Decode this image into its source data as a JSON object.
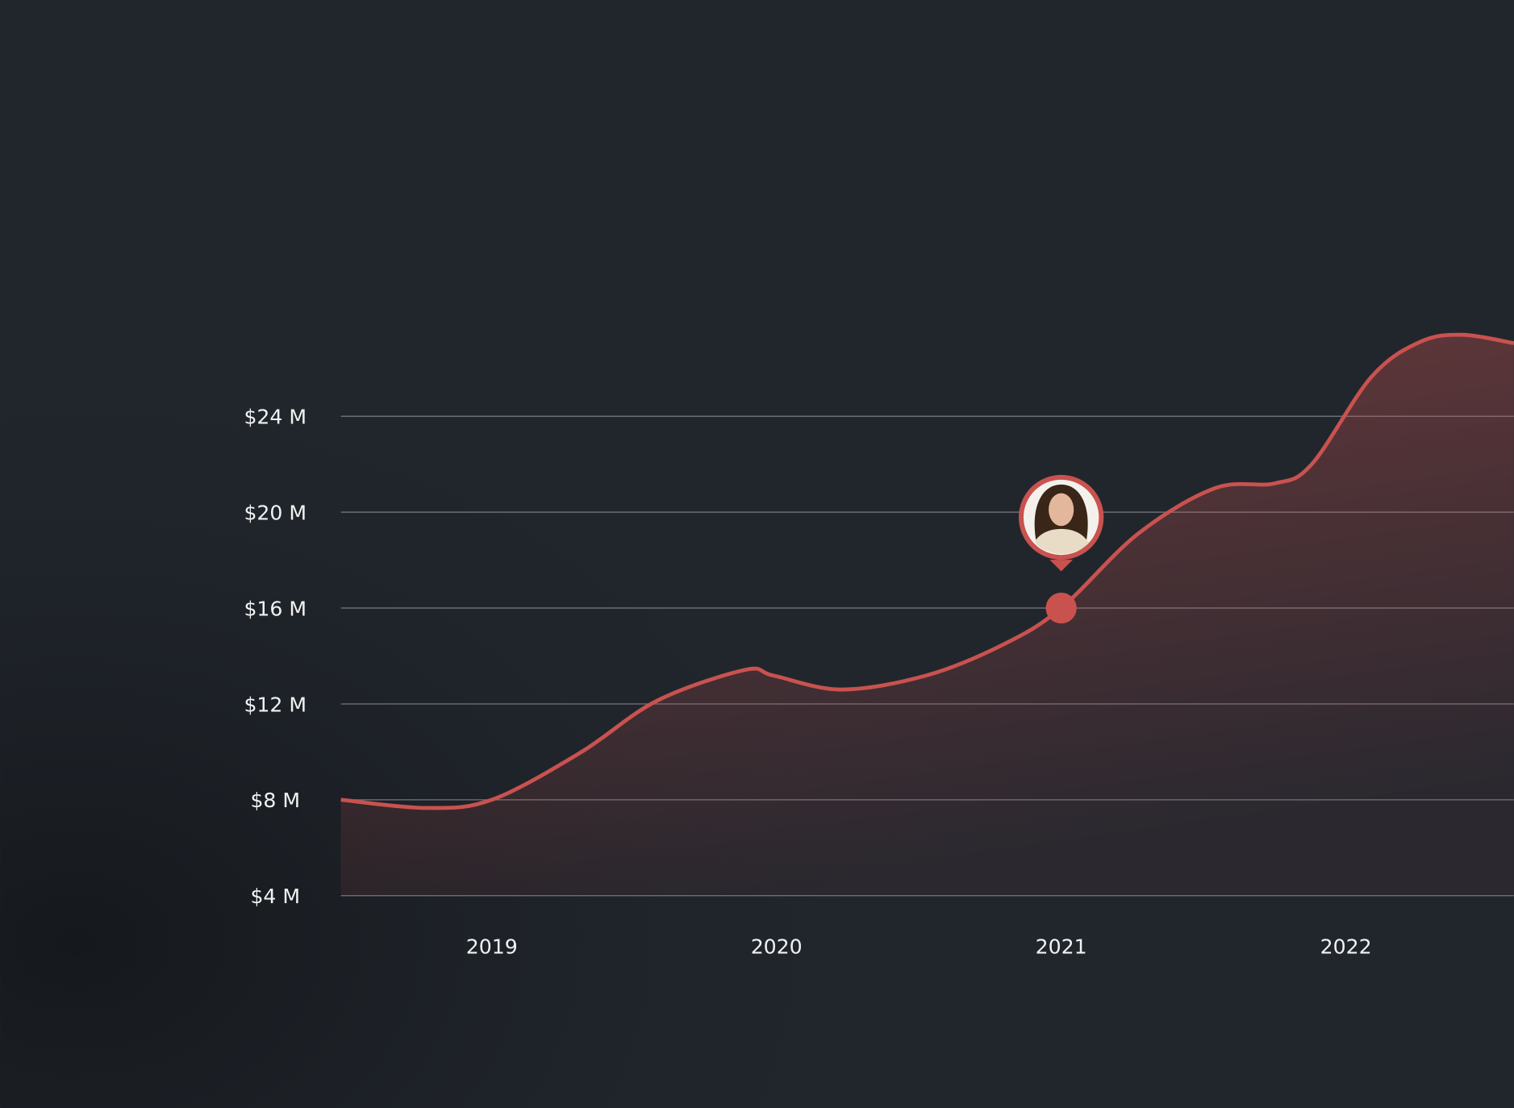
{
  "chart_data": {
    "type": "area",
    "x": [
      2018.47,
      2018.77,
      2019.0,
      2019.31,
      2019.58,
      2019.89,
      2019.99,
      2020.23,
      2020.53,
      2020.8,
      2021.0,
      2021.27,
      2021.54,
      2021.75,
      2021.88,
      2022.09,
      2022.26,
      2022.41,
      2022.59
    ],
    "series": [
      {
        "color": "#c9524f",
        "values": [
          8.0,
          7.66,
          8.0,
          9.96,
          12.13,
          13.42,
          13.18,
          12.6,
          13.2,
          14.5,
          16.0,
          19.1,
          21.0,
          21.2,
          22.0,
          25.65,
          27.1,
          27.4,
          27.05
        ]
      }
    ],
    "xlim": [
      2018.47,
      2022.59
    ],
    "xticks": [
      2019,
      2020,
      2021,
      2022
    ],
    "ylim": [
      4,
      28
    ],
    "yticks": [
      {
        "value": 4,
        "label": "$4 M"
      },
      {
        "value": 8,
        "label": "$8 M"
      },
      {
        "value": 12,
        "label": "$12 M"
      },
      {
        "value": 16,
        "label": "$16 M"
      },
      {
        "value": 20,
        "label": "$20 M"
      },
      {
        "value": 24,
        "label": "$24 M"
      }
    ],
    "grid": true
  }
}
